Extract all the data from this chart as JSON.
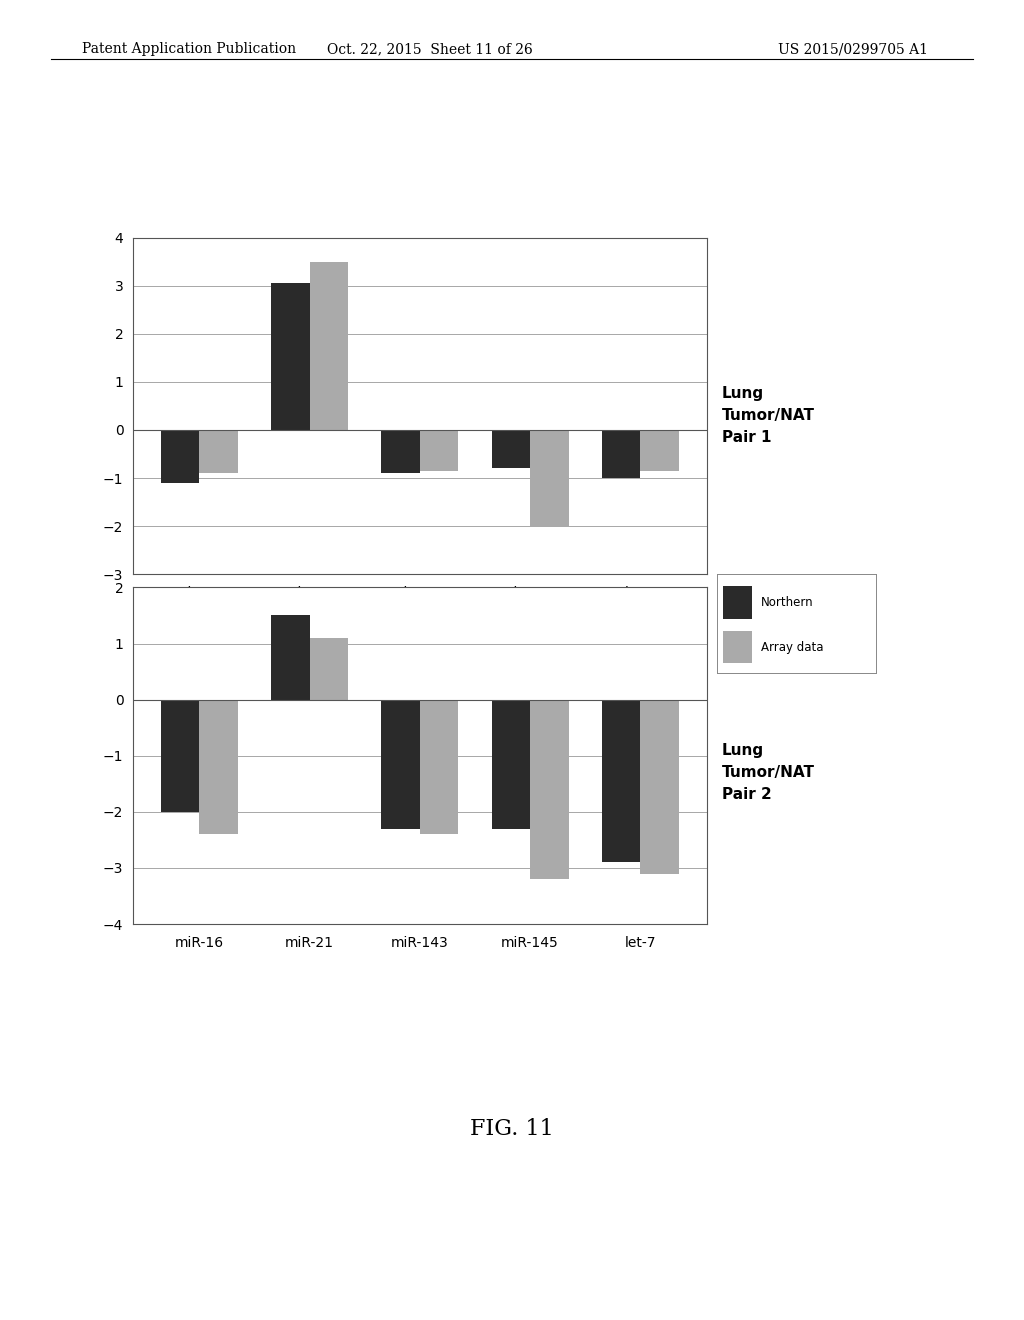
{
  "categories": [
    "miR-16",
    "miR-21",
    "miR-143",
    "miR-145",
    "let-7"
  ],
  "pair1_northern": [
    -1.1,
    3.05,
    -0.9,
    -0.8,
    -1.0
  ],
  "pair1_array": [
    -0.9,
    3.5,
    -0.85,
    -2.0,
    -0.85
  ],
  "pair2_northern": [
    -2.0,
    1.5,
    -2.3,
    -2.3,
    -2.9
  ],
  "pair2_array": [
    -2.4,
    1.1,
    -2.4,
    -3.2,
    -3.1
  ],
  "pair1_ylim": [
    -3,
    4
  ],
  "pair1_yticks": [
    -3,
    -2,
    -1,
    0,
    1,
    2,
    3,
    4
  ],
  "pair2_ylim": [
    -4,
    2
  ],
  "pair2_yticks": [
    -4,
    -3,
    -2,
    -1,
    0,
    1,
    2
  ],
  "northern_color": "#2a2a2a",
  "array_color": "#aaaaaa",
  "label1": "Lung\nTumor/NAT\nPair 1",
  "label2": "Lung\nTumor/NAT\nPair 2",
  "legend_northern": "Northern",
  "legend_array": "Array data",
  "fig_title": "FIG. 11",
  "header_left": "Patent Application Publication",
  "header_center": "Oct. 22, 2015  Sheet 11 of 26",
  "header_right": "US 2015/0299705 A1",
  "bar_width": 0.35,
  "background_color": "#ffffff"
}
